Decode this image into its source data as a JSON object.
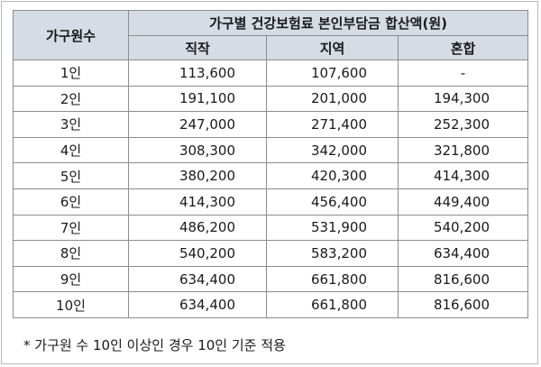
{
  "table": {
    "header": {
      "household_col": "가구원수",
      "group_title": "가구별 건강보험료 본인부담금 합산액(원)",
      "sub_cols": [
        "직작",
        "지역",
        "혼합"
      ]
    },
    "rows": [
      {
        "household": "1인",
        "employee": "113,600",
        "regional": "107,600",
        "mixed": "-"
      },
      {
        "household": "2인",
        "employee": "191,100",
        "regional": "201,000",
        "mixed": "194,300"
      },
      {
        "household": "3인",
        "employee": "247,000",
        "regional": "271,400",
        "mixed": "252,300"
      },
      {
        "household": "4인",
        "employee": "308,300",
        "regional": "342,000",
        "mixed": "321,800"
      },
      {
        "household": "5인",
        "employee": "380,200",
        "regional": "420,300",
        "mixed": "414,300"
      },
      {
        "household": "6인",
        "employee": "414,300",
        "regional": "456,400",
        "mixed": "449,400"
      },
      {
        "household": "7인",
        "employee": "486,200",
        "regional": "531,900",
        "mixed": "540,200"
      },
      {
        "household": "8인",
        "employee": "540,200",
        "regional": "583,200",
        "mixed": "634,400"
      },
      {
        "household": "9인",
        "employee": "634,400",
        "regional": "661,800",
        "mixed": "816,600"
      },
      {
        "household": "10인",
        "employee": "634,400",
        "regional": "661,800",
        "mixed": "816,600"
      }
    ]
  },
  "footnote": "* 가구원 수 10인 이상인 경우 10인 기준 적용"
}
